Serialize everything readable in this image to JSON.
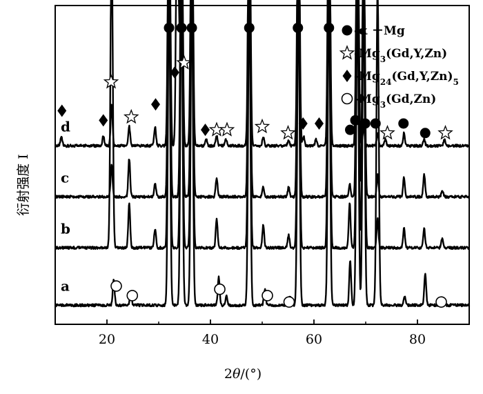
{
  "chart_data": {
    "type": "line",
    "xlabel_parts": [
      "2",
      "θ",
      "/(°)"
    ],
    "ylabel": "衍射强度 I",
    "xlim": [
      10,
      90
    ],
    "ylim": [
      0,
      100
    ],
    "grid": false,
    "legend_placement": "top-right",
    "x_ticks": [
      20,
      40,
      60,
      80
    ],
    "x_tick_labels": [
      "20",
      "40",
      "60",
      "80"
    ],
    "series": [
      {
        "name": "a",
        "baseline": 6,
        "peaks": [
          [
            21.3,
            8
          ],
          [
            24.6,
            4
          ],
          [
            32.0,
            100
          ],
          [
            34.4,
            100
          ],
          [
            36.4,
            100
          ],
          [
            41.6,
            9
          ],
          [
            43.1,
            3
          ],
          [
            47.5,
            100
          ],
          [
            50.5,
            5
          ],
          [
            55.4,
            3
          ],
          [
            57.0,
            100
          ],
          [
            62.9,
            100
          ],
          [
            67.0,
            14
          ],
          [
            68.4,
            100
          ],
          [
            69.6,
            100
          ],
          [
            72.3,
            100
          ],
          [
            77.5,
            3
          ],
          [
            81.5,
            10
          ],
          [
            85.0,
            2
          ]
        ]
      },
      {
        "name": "b",
        "baseline": 24,
        "peaks": [
          [
            20.9,
            100
          ],
          [
            24.3,
            14
          ],
          [
            29.3,
            6
          ],
          [
            32.0,
            100
          ],
          [
            34.4,
            100
          ],
          [
            36.4,
            100
          ],
          [
            41.2,
            9
          ],
          [
            47.5,
            100
          ],
          [
            50.2,
            7
          ],
          [
            55.1,
            4
          ],
          [
            57.0,
            100
          ],
          [
            62.9,
            100
          ],
          [
            66.9,
            14
          ],
          [
            68.4,
            100
          ],
          [
            69.6,
            100
          ],
          [
            72.3,
            9
          ],
          [
            77.4,
            6
          ],
          [
            81.3,
            6
          ],
          [
            84.8,
            3
          ]
        ]
      },
      {
        "name": "c",
        "baseline": 40,
        "peaks": [
          [
            20.9,
            10
          ],
          [
            24.3,
            12
          ],
          [
            29.3,
            4
          ],
          [
            32.0,
            100
          ],
          [
            34.4,
            100
          ],
          [
            36.4,
            100
          ],
          [
            41.2,
            6
          ],
          [
            47.5,
            100
          ],
          [
            50.2,
            3
          ],
          [
            55.1,
            3
          ],
          [
            57.0,
            100
          ],
          [
            62.9,
            100
          ],
          [
            66.9,
            4
          ],
          [
            68.4,
            100
          ],
          [
            69.6,
            100
          ],
          [
            72.3,
            7
          ],
          [
            77.4,
            6
          ],
          [
            81.3,
            7
          ],
          [
            84.8,
            2
          ]
        ]
      },
      {
        "name": "d",
        "baseline": 56,
        "peaks": [
          [
            11.2,
            3
          ],
          [
            19.3,
            3
          ],
          [
            20.9,
            13
          ],
          [
            24.3,
            6
          ],
          [
            29.3,
            6
          ],
          [
            32.0,
            100
          ],
          [
            33.6,
            100
          ],
          [
            34.4,
            100
          ],
          [
            36.4,
            100
          ],
          [
            39.2,
            2
          ],
          [
            41.2,
            3
          ],
          [
            43.0,
            2
          ],
          [
            47.5,
            100
          ],
          [
            50.2,
            3
          ],
          [
            55.1,
            2
          ],
          [
            57.0,
            100
          ],
          [
            58.0,
            3
          ],
          [
            60.4,
            2
          ],
          [
            62.9,
            100
          ],
          [
            68.4,
            100
          ],
          [
            69.6,
            6
          ],
          [
            72.3,
            4
          ],
          [
            73.8,
            2
          ],
          [
            77.4,
            4
          ],
          [
            81.3,
            2
          ],
          [
            85.2,
            2
          ]
        ]
      }
    ],
    "annotations": {
      "filled_circles": [
        [
          32.0,
          93
        ],
        [
          34.4,
          93
        ],
        [
          36.4,
          93
        ],
        [
          47.5,
          93
        ],
        [
          56.9,
          93
        ],
        [
          62.9,
          93
        ],
        [
          67.0,
          61
        ],
        [
          68.0,
          64
        ],
        [
          69.9,
          63
        ],
        [
          71.9,
          63
        ],
        [
          77.3,
          63
        ],
        [
          81.5,
          60
        ]
      ],
      "open_stars": [
        [
          20.8,
          76
        ],
        [
          24.7,
          65
        ],
        [
          34.9,
          82
        ],
        [
          41.2,
          61
        ],
        [
          43.2,
          61
        ],
        [
          50.0,
          62
        ],
        [
          55.0,
          60
        ],
        [
          74.2,
          60
        ],
        [
          85.4,
          60
        ]
      ],
      "filled_diamonds": [
        [
          11.3,
          67
        ],
        [
          19.3,
          64
        ],
        [
          29.4,
          69
        ],
        [
          33.1,
          79
        ],
        [
          39.0,
          61
        ],
        [
          57.9,
          63
        ],
        [
          61.0,
          63
        ]
      ],
      "open_circles": [
        [
          21.8,
          12
        ],
        [
          24.9,
          9
        ],
        [
          41.8,
          11
        ],
        [
          51.0,
          9
        ],
        [
          55.2,
          7
        ],
        [
          84.6,
          7
        ]
      ]
    },
    "legend": [
      {
        "symbol": "filled_circle",
        "text_parts": [
          [
            "-α －Mg",
            ""
          ]
        ]
      },
      {
        "symbol": "open_star",
        "text_parts": [
          [
            "-Mg",
            ""
          ],
          [
            "3",
            "sub"
          ],
          [
            "(Gd,Y,Zn)",
            ""
          ]
        ]
      },
      {
        "symbol": "filled_diamond",
        "text_parts": [
          [
            "-Mg",
            ""
          ],
          [
            "24",
            "sub"
          ],
          [
            "(Gd,Y,Zn)",
            ""
          ],
          [
            "5",
            "sub"
          ]
        ]
      },
      {
        "symbol": "open_circle",
        "text_parts": [
          [
            "-Mg",
            ""
          ],
          [
            "3",
            "sub"
          ],
          [
            "(Gd,Zn)",
            ""
          ]
        ]
      }
    ]
  }
}
